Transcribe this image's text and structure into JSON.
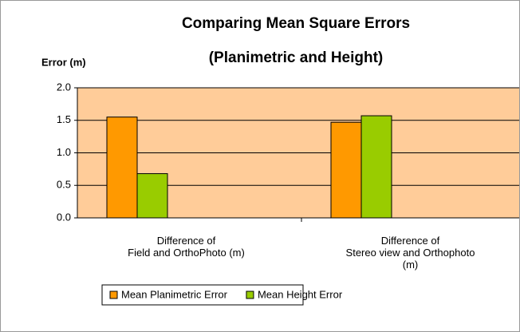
{
  "chart_data": {
    "type": "bar",
    "title": "Comparing Mean Square Errors",
    "subtitle": "(Planimetric and Height)",
    "y_label": "Error (m)",
    "categories": [
      "Difference of\nField and OrthoPhoto (m)",
      "Difference of\nStereo view and Orthophoto\n(m)"
    ],
    "series": [
      {
        "name": "Mean Planimetric Error",
        "color": "#ff9900",
        "values": [
          1.55,
          1.47
        ]
      },
      {
        "name": "Mean Height Error",
        "color": "#99cc00",
        "values": [
          0.68,
          1.57
        ]
      }
    ],
    "ylim": [
      0,
      2
    ],
    "yticks": [
      {
        "value": 0,
        "label": "0.0"
      },
      0.5,
      {
        "value": 1,
        "label": "1.0"
      },
      1.5,
      {
        "value": 2,
        "label": "2.0"
      }
    ],
    "grid": true,
    "plot_background": "#ffcc99",
    "legend": "bottom"
  }
}
